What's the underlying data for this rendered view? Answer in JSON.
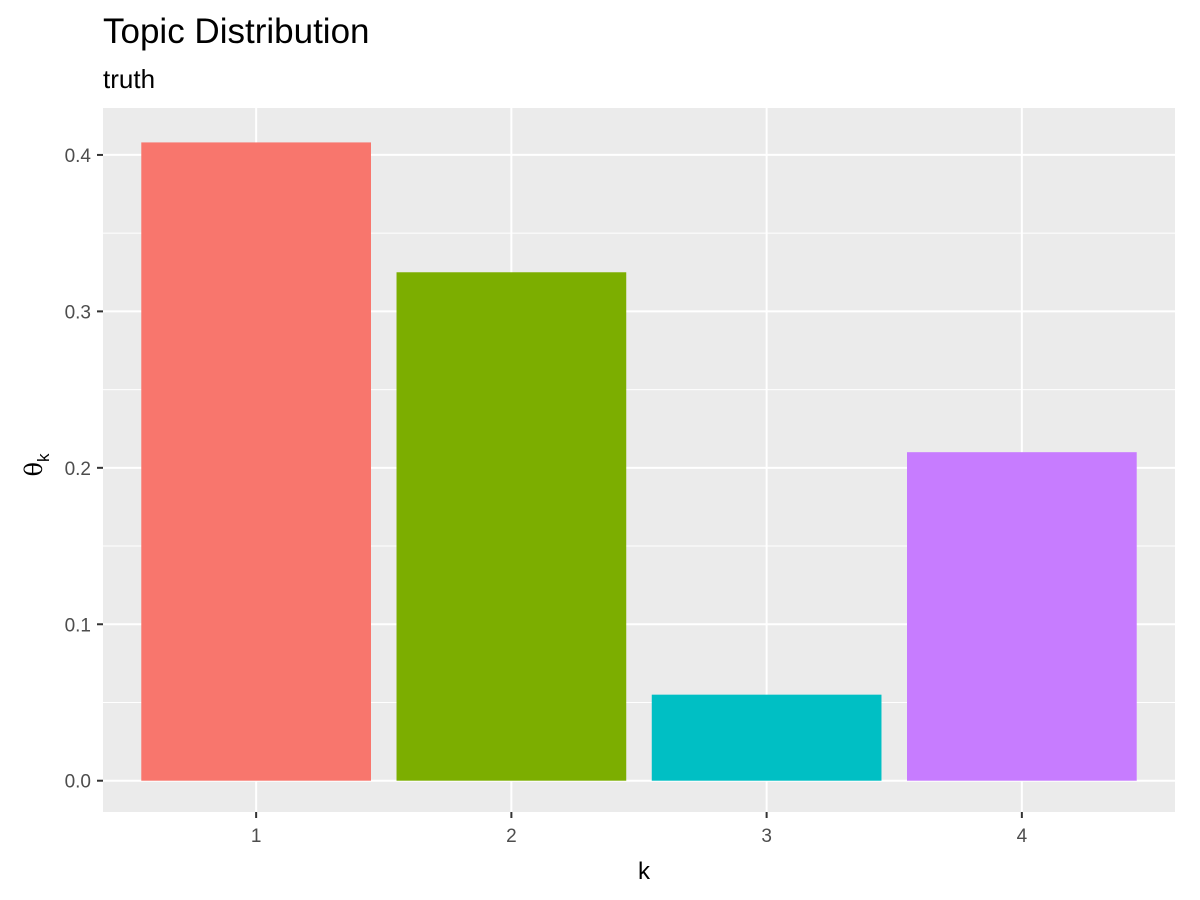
{
  "chart_data": {
    "type": "bar",
    "title": "Topic Distribution",
    "subtitle": "truth",
    "xlabel": "k",
    "ylabel_symbol": "θ",
    "ylabel_subscript": "k",
    "categories": [
      "1",
      "2",
      "3",
      "4"
    ],
    "values": [
      0.408,
      0.325,
      0.055,
      0.21
    ],
    "colors": [
      "#F8766D",
      "#7CAE00",
      "#00BFC4",
      "#C77CFF"
    ],
    "ylim": [
      -0.02,
      0.43
    ],
    "yticks": [
      0.0,
      0.1,
      0.2,
      0.3,
      0.4
    ],
    "ytick_labels": [
      "0.0",
      "0.1",
      "0.2",
      "0.3",
      "0.4"
    ],
    "grid": true,
    "legend": "none",
    "panel_background": "#EBEBEB",
    "grid_color": "#FFFFFF"
  }
}
